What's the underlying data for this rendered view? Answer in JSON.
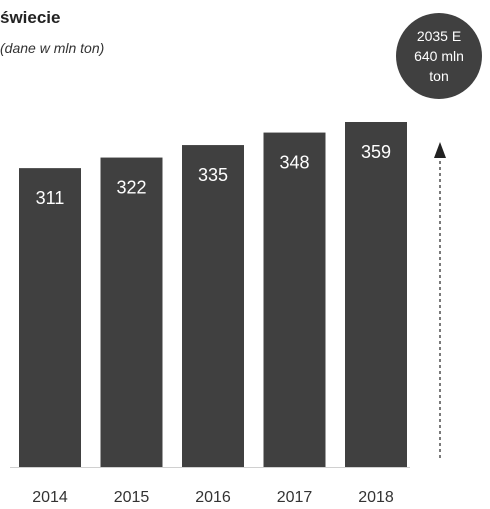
{
  "title": "świecie",
  "subtitle": "(dane w mln ton)",
  "forecast": {
    "lines": [
      "2035 E",
      "640 mln",
      "ton"
    ]
  },
  "colors": {
    "bar": "#404040",
    "badge": "#404040",
    "axis": "#d0d0d0",
    "bar_label": "#ffffff",
    "tick": "#333333",
    "arrow": "#222222"
  },
  "chart_data": {
    "type": "bar",
    "title": "",
    "subtitle": "(dane w mln ton)",
    "xlabel": "",
    "ylabel": "",
    "categories": [
      "2014",
      "2015",
      "2016",
      "2017",
      "2018"
    ],
    "values": [
      311,
      322,
      335,
      348,
      359
    ],
    "data_labels": [
      "311",
      "322",
      "335",
      "348",
      "359"
    ],
    "ylim": [
      0,
      380
    ],
    "grid": false,
    "legend": "none",
    "annotation": "2035 E 640 mln ton"
  }
}
